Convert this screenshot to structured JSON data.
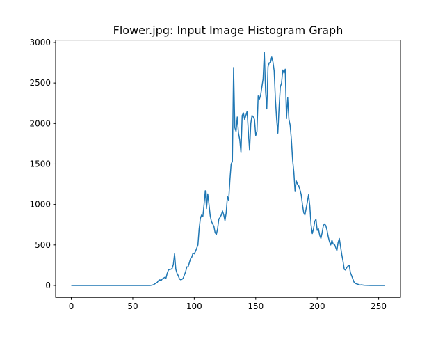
{
  "chart_data": {
    "type": "line",
    "title": "Flower.jpg: Input Image Histogram Graph",
    "x": [
      0,
      1,
      2,
      3,
      4,
      5,
      6,
      7,
      8,
      9,
      10,
      11,
      12,
      13,
      14,
      15,
      16,
      17,
      18,
      19,
      20,
      21,
      22,
      23,
      24,
      25,
      26,
      27,
      28,
      29,
      30,
      31,
      32,
      33,
      34,
      35,
      36,
      37,
      38,
      39,
      40,
      41,
      42,
      43,
      44,
      45,
      46,
      47,
      48,
      49,
      50,
      51,
      52,
      53,
      54,
      55,
      56,
      57,
      58,
      59,
      60,
      61,
      62,
      63,
      64,
      65,
      66,
      67,
      68,
      69,
      70,
      71,
      72,
      73,
      74,
      75,
      76,
      77,
      78,
      79,
      80,
      81,
      82,
      83,
      84,
      85,
      86,
      87,
      88,
      89,
      90,
      91,
      92,
      93,
      94,
      95,
      96,
      97,
      98,
      99,
      100,
      101,
      102,
      103,
      104,
      105,
      106,
      107,
      108,
      109,
      110,
      111,
      112,
      113,
      114,
      115,
      116,
      117,
      118,
      119,
      120,
      121,
      122,
      123,
      124,
      125,
      126,
      127,
      128,
      129,
      130,
      131,
      132,
      133,
      134,
      135,
      136,
      137,
      138,
      139,
      140,
      141,
      142,
      143,
      144,
      145,
      146,
      147,
      148,
      149,
      150,
      151,
      152,
      153,
      154,
      155,
      156,
      157,
      158,
      159,
      160,
      161,
      162,
      163,
      164,
      165,
      166,
      167,
      168,
      169,
      170,
      171,
      172,
      173,
      174,
      175,
      176,
      177,
      178,
      179,
      180,
      181,
      182,
      183,
      184,
      185,
      186,
      187,
      188,
      189,
      190,
      191,
      192,
      193,
      194,
      195,
      196,
      197,
      198,
      199,
      200,
      201,
      202,
      203,
      204,
      205,
      206,
      207,
      208,
      209,
      210,
      211,
      212,
      213,
      214,
      215,
      216,
      217,
      218,
      219,
      220,
      221,
      222,
      223,
      224,
      225,
      226,
      227,
      228,
      229,
      230,
      231,
      232,
      233,
      234,
      235,
      236,
      237,
      238,
      239,
      240,
      241,
      242,
      243,
      244,
      245,
      246,
      247,
      248,
      249,
      250,
      251,
      252,
      253,
      254,
      255
    ],
    "series": [
      {
        "color": "#1f77b4",
        "values": [
          0,
          0,
          0,
          0,
          0,
          0,
          0,
          0,
          0,
          0,
          0,
          0,
          0,
          0,
          0,
          0,
          0,
          0,
          0,
          0,
          0,
          0,
          0,
          0,
          0,
          0,
          0,
          0,
          0,
          0,
          0,
          0,
          0,
          0,
          0,
          0,
          0,
          0,
          0,
          0,
          0,
          0,
          0,
          0,
          0,
          0,
          0,
          0,
          0,
          0,
          0,
          0,
          0,
          0,
          0,
          0,
          0,
          0,
          0,
          0,
          0,
          0,
          0,
          0,
          0,
          2,
          5,
          10,
          20,
          30,
          40,
          60,
          70,
          60,
          80,
          90,
          100,
          90,
          150,
          190,
          200,
          200,
          210,
          260,
          390,
          200,
          150,
          120,
          80,
          70,
          75,
          90,
          130,
          170,
          230,
          230,
          280,
          330,
          350,
          400,
          390,
          420,
          460,
          500,
          700,
          830,
          870,
          850,
          1000,
          1170,
          950,
          1130,
          1000,
          860,
          790,
          760,
          730,
          650,
          630,
          700,
          820,
          840,
          870,
          920,
          870,
          800,
          900,
          1100,
          1050,
          1300,
          1500,
          1530,
          2690,
          1950,
          1900,
          2080,
          1880,
          1800,
          1640,
          2100,
          2130,
          2050,
          2100,
          2150,
          1900,
          1670,
          2000,
          2100,
          2080,
          2050,
          1850,
          1900,
          2340,
          2300,
          2350,
          2450,
          2550,
          2880,
          2400,
          2180,
          2700,
          2750,
          2750,
          2820,
          2760,
          2650,
          2300,
          2050,
          1880,
          2200,
          2450,
          2500,
          2660,
          2620,
          2670,
          2060,
          2320,
          2050,
          1980,
          1800,
          1550,
          1400,
          1160,
          1290,
          1250,
          1230,
          1180,
          1120,
          1000,
          900,
          870,
          950,
          1030,
          1120,
          980,
          750,
          640,
          700,
          790,
          820,
          680,
          700,
          620,
          580,
          650,
          740,
          760,
          740,
          680,
          600,
          540,
          500,
          560,
          510,
          510,
          470,
          430,
          530,
          580,
          480,
          380,
          300,
          200,
          190,
          220,
          240,
          250,
          160,
          120,
          80,
          40,
          25,
          20,
          15,
          10,
          5,
          8,
          5,
          3,
          2,
          2,
          1,
          1,
          0,
          0,
          0,
          0,
          0,
          0,
          0,
          0,
          0,
          0,
          0,
          0,
          0
        ]
      }
    ],
    "xlim": [
      -12.75,
      267.75
    ],
    "xticks": [
      0,
      50,
      100,
      150,
      200,
      250
    ],
    "ylim": [
      -148,
      3029
    ],
    "yticks": [
      0,
      500,
      1000,
      1500,
      2000,
      2500,
      3000
    ]
  }
}
